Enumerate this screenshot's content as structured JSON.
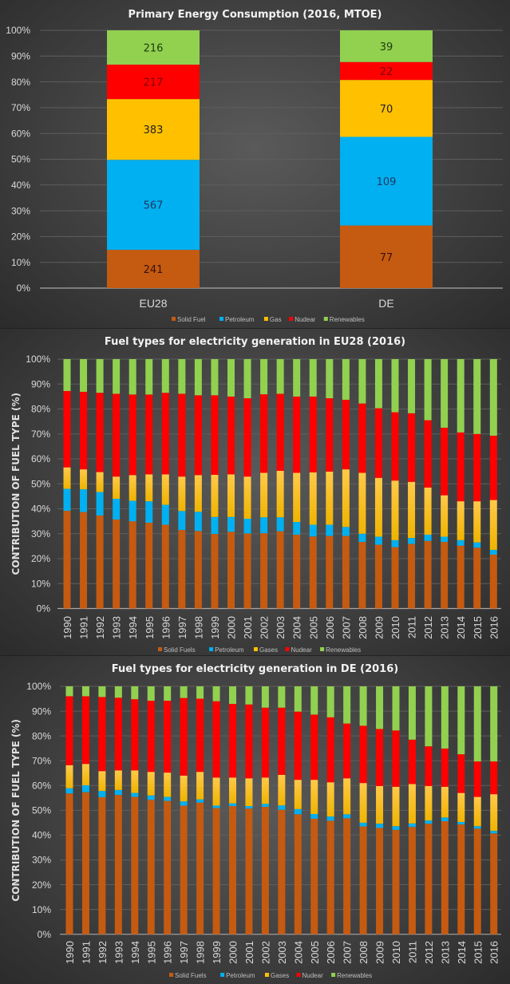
{
  "colors": {
    "solid": "#c55a11",
    "petroleum": "#00b0f0",
    "gas": "#ffc000",
    "nuclear": "#ff0000",
    "renewables": "#92d050"
  },
  "chart_data": [
    {
      "type": "bar",
      "stacked": "percent",
      "title": "Primary Energy Consumption  (2016, MTOE)",
      "xlabel": "",
      "ylabel": "",
      "ylim": [
        0,
        100
      ],
      "yticks": [
        "0%",
        "10%",
        "20%",
        "30%",
        "40%",
        "50%",
        "60%",
        "70%",
        "80%",
        "90%",
        "100%"
      ],
      "grid": true,
      "legend_position": "bottom",
      "categories": [
        "EU28",
        "DE"
      ],
      "series": [
        {
          "name": "Solid Fuel",
          "key": "solid",
          "values": [
            241,
            77
          ]
        },
        {
          "name": "Petroleum",
          "key": "petroleum",
          "values": [
            567,
            109
          ]
        },
        {
          "name": "Gas",
          "key": "gas",
          "values": [
            383,
            70
          ]
        },
        {
          "name": "Nudear",
          "key": "nuclear",
          "values": [
            217,
            22
          ]
        },
        {
          "name": "Renewables",
          "key": "renewables",
          "values": [
            216,
            39
          ]
        }
      ],
      "data_labels": true
    },
    {
      "type": "bar",
      "stacked": "percent",
      "title": "Fuel types for electricity generation in EU28 (2016)",
      "xlabel": "",
      "ylabel": "CONTRIBUTION OF FUEL TYPE (%)",
      "ylim": [
        0,
        100
      ],
      "yticks": [
        "0%",
        "10%",
        "20%",
        "30%",
        "40%",
        "50%",
        "60%",
        "70%",
        "80%",
        "90%",
        "100%"
      ],
      "grid": true,
      "legend_position": "bottom",
      "categories": [
        "1990",
        "1991",
        "1992",
        "1993",
        "1994",
        "1995",
        "1996",
        "1997",
        "1998",
        "1999",
        "2000",
        "2001",
        "2002",
        "2003",
        "2004",
        "2005",
        "2006",
        "2007",
        "2008",
        "2009",
        "2010",
        "2011",
        "2012",
        "2013",
        "2014",
        "2015",
        "2016"
      ],
      "series": [
        {
          "name": "Solid Fuels",
          "key": "solid",
          "values": [
            39.2,
            38.7,
            37.3,
            35.7,
            35.0,
            34.4,
            33.6,
            31.5,
            31.1,
            29.9,
            30.8,
            30.1,
            30.2,
            31.0,
            29.6,
            28.9,
            29.1,
            29.1,
            26.7,
            25.6,
            24.6,
            25.9,
            27.1,
            26.7,
            25.2,
            24.4,
            21.6
          ]
        },
        {
          "name": "Petroleum",
          "key": "petroleum",
          "values": [
            8.8,
            9.1,
            9.4,
            8.3,
            8.2,
            8.6,
            8.0,
            7.6,
            7.7,
            6.8,
            5.9,
            5.9,
            6.4,
            5.6,
            5.1,
            4.7,
            4.5,
            3.6,
            3.3,
            3.2,
            2.8,
            2.4,
            2.5,
            2.1,
            2.2,
            2.1,
            1.9
          ]
        },
        {
          "name": "Gases",
          "key": "gas",
          "values": [
            8.6,
            8.0,
            8.0,
            8.9,
            10.3,
            10.8,
            12.2,
            13.8,
            14.7,
            16.9,
            17.1,
            16.9,
            17.8,
            18.6,
            19.7,
            21.0,
            21.3,
            23.1,
            24.4,
            23.6,
            23.9,
            22.5,
            18.9,
            16.6,
            15.6,
            16.5,
            20.0
          ]
        },
        {
          "name": "Nudear",
          "key": "nuclear",
          "values": [
            30.6,
            31.1,
            31.8,
            33.2,
            32.3,
            32.0,
            32.7,
            33.2,
            32.0,
            31.9,
            31.2,
            31.4,
            31.5,
            30.9,
            30.6,
            30.4,
            29.4,
            27.9,
            27.8,
            27.9,
            27.4,
            27.5,
            27.0,
            27.1,
            27.6,
            27.0,
            25.8
          ]
        },
        {
          "name": "Renewables",
          "key": "renewables",
          "values": [
            12.8,
            13.1,
            13.5,
            13.9,
            14.2,
            14.2,
            13.5,
            13.9,
            14.5,
            14.5,
            15.0,
            15.7,
            14.1,
            13.9,
            15.0,
            15.0,
            15.7,
            16.3,
            17.8,
            19.7,
            21.3,
            21.7,
            24.5,
            27.5,
            29.4,
            30.0,
            30.7
          ]
        }
      ]
    },
    {
      "type": "bar",
      "stacked": "percent",
      "title": "Fuel types for electricity generation in DE (2016)",
      "xlabel": "",
      "ylabel": "CONTRIBUTION OF FUEL TYPE (%)",
      "ylim": [
        0,
        100
      ],
      "yticks": [
        "0%",
        "10%",
        "20%",
        "30%",
        "40%",
        "50%",
        "60%",
        "70%",
        "80%",
        "90%",
        "100%"
      ],
      "grid": true,
      "legend_position": "bottom",
      "categories": [
        "1990",
        "1991",
        "1992",
        "1993",
        "1994",
        "1995",
        "1996",
        "1997",
        "1998",
        "1999",
        "2000",
        "2001",
        "2002",
        "2003",
        "2004",
        "2005",
        "2006",
        "2007",
        "2008",
        "2009",
        "2010",
        "2011",
        "2012",
        "2013",
        "2014",
        "2015",
        "2016"
      ],
      "series": [
        {
          "name": "Solid Fuels",
          "key": "solid",
          "values": [
            56.8,
            57.3,
            55.3,
            56.2,
            55.4,
            54.2,
            53.8,
            51.9,
            53.1,
            50.9,
            51.7,
            50.7,
            51.4,
            50.2,
            48.4,
            46.6,
            45.8,
            46.8,
            43.5,
            42.9,
            42.1,
            43.3,
            44.6,
            45.6,
            44.3,
            42.6,
            40.7
          ]
        },
        {
          "name": "Petroleum",
          "key": "petroleum",
          "values": [
            2.1,
            2.8,
            2.5,
            2.0,
            1.6,
            1.8,
            1.6,
            1.7,
            1.3,
            1.0,
            1.1,
            1.0,
            1.2,
            1.8,
            2.1,
            1.9,
            1.7,
            1.6,
            1.5,
            1.7,
            1.5,
            1.4,
            1.3,
            1.5,
            1.0,
            1.0,
            1.0
          ]
        },
        {
          "name": "Gases",
          "key": "gas",
          "values": [
            9.3,
            8.6,
            8.0,
            7.9,
            9.1,
            9.5,
            9.8,
            10.4,
            11.1,
            11.3,
            10.4,
            11.2,
            10.6,
            12.3,
            11.8,
            13.8,
            13.8,
            14.5,
            16.0,
            15.2,
            15.9,
            15.9,
            13.9,
            12.4,
            11.7,
            11.8,
            14.8
          ]
        },
        {
          "name": "Nudear",
          "key": "nuclear",
          "values": [
            27.8,
            27.3,
            29.9,
            29.3,
            28.7,
            28.7,
            29.0,
            31.3,
            29.5,
            30.8,
            29.7,
            29.8,
            28.2,
            27.1,
            27.5,
            26.3,
            26.2,
            22.1,
            23.1,
            23.0,
            22.7,
            17.9,
            16.0,
            15.4,
            15.6,
            14.3,
            13.2
          ]
        },
        {
          "name": "Renewables",
          "key": "renewables",
          "values": [
            4.0,
            4.0,
            4.3,
            4.6,
            5.2,
            5.8,
            5.8,
            4.7,
            5.0,
            6.0,
            7.1,
            7.3,
            8.6,
            8.6,
            10.2,
            11.4,
            12.5,
            15.0,
            15.9,
            17.2,
            17.8,
            21.5,
            24.2,
            25.1,
            27.4,
            30.3,
            30.3
          ]
        }
      ]
    }
  ]
}
